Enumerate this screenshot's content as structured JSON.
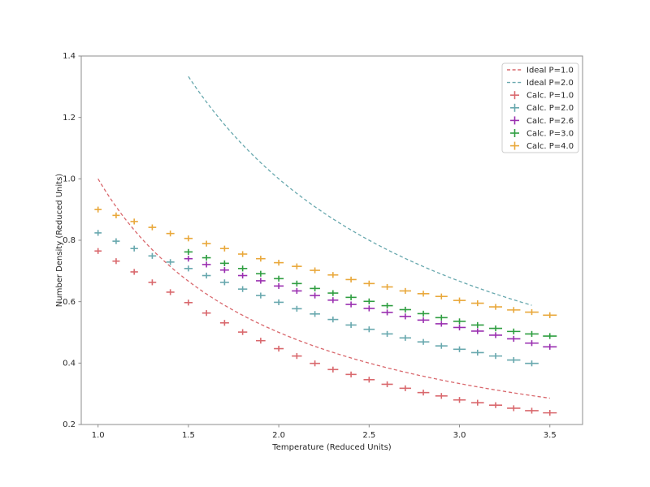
{
  "chart_data": {
    "type": "line+scatter-errorbar",
    "title": "",
    "xlabel": "Temperature (Reduced Units)",
    "ylabel": "Number Density (Reduced Units)",
    "xlim": [
      0.907,
      3.681
    ],
    "ylim": [
      0.2,
      1.4
    ],
    "xticks": [
      1.0,
      1.5,
      2.0,
      2.5,
      3.0,
      3.5
    ],
    "yticks": [
      0.2,
      0.4,
      0.6,
      0.8,
      1.0,
      1.2,
      1.4
    ],
    "grid": false,
    "legend_position": "upper right",
    "xerr_rule": {
      "base": 0.012,
      "slope": 0.0075
    },
    "series": [
      {
        "name": "Ideal P=1.0",
        "kind": "ideal_line",
        "pressure": 1.0,
        "formula": "density = P / T",
        "T_range": [
          1.0,
          3.5
        ],
        "color": "#d9686d",
        "linestyle": "dashed"
      },
      {
        "name": "Ideal P=2.0",
        "kind": "ideal_line",
        "pressure": 2.0,
        "formula": "density = P / T",
        "T_range": [
          1.5,
          3.4
        ],
        "color": "#68a8ae",
        "linestyle": "dashed"
      },
      {
        "name": "Calc. P=1.0",
        "kind": "errorbar",
        "pressure": 1.0,
        "color": "#d9686d",
        "marker": "+",
        "T": [
          1.0,
          1.1,
          1.2,
          1.3,
          1.4,
          1.5,
          1.6,
          1.7,
          1.8,
          1.9,
          2.0,
          2.1,
          2.2,
          2.3,
          2.4,
          2.5,
          2.6,
          2.7,
          2.8,
          2.9,
          3.0,
          3.1,
          3.2,
          3.3,
          3.4,
          3.5
        ],
        "density": [
          0.765,
          0.732,
          0.697,
          0.663,
          0.631,
          0.597,
          0.563,
          0.531,
          0.501,
          0.473,
          0.447,
          0.423,
          0.399,
          0.379,
          0.363,
          0.346,
          0.331,
          0.318,
          0.304,
          0.293,
          0.28,
          0.271,
          0.263,
          0.253,
          0.245,
          0.238
        ]
      },
      {
        "name": "Calc. P=2.0",
        "kind": "errorbar",
        "pressure": 2.0,
        "color": "#68a8ae",
        "marker": "+",
        "T": [
          1.0,
          1.1,
          1.2,
          1.3,
          1.4,
          1.5,
          1.6,
          1.7,
          1.8,
          1.9,
          2.0,
          2.1,
          2.2,
          2.3,
          2.4,
          2.5,
          2.6,
          2.7,
          2.8,
          2.9,
          3.0,
          3.1,
          3.2,
          3.3,
          3.4
        ],
        "density": [
          0.824,
          0.797,
          0.773,
          0.749,
          0.729,
          0.708,
          0.685,
          0.663,
          0.641,
          0.62,
          0.598,
          0.577,
          0.56,
          0.542,
          0.524,
          0.51,
          0.495,
          0.482,
          0.469,
          0.456,
          0.445,
          0.434,
          0.423,
          0.41,
          0.399
        ]
      },
      {
        "name": "Calc. P=2.6",
        "kind": "errorbar",
        "pressure": 2.6,
        "color": "#9a2fb0",
        "marker": "+",
        "T": [
          1.5,
          1.6,
          1.7,
          1.8,
          1.9,
          2.0,
          2.1,
          2.2,
          2.3,
          2.4,
          2.5,
          2.6,
          2.7,
          2.8,
          2.9,
          3.0,
          3.1,
          3.2,
          3.3,
          3.4,
          3.5
        ],
        "density": [
          0.74,
          0.721,
          0.703,
          0.685,
          0.668,
          0.651,
          0.635,
          0.62,
          0.605,
          0.591,
          0.578,
          0.565,
          0.552,
          0.54,
          0.528,
          0.516,
          0.504,
          0.491,
          0.479,
          0.465,
          0.453
        ]
      },
      {
        "name": "Calc. P=3.0",
        "kind": "errorbar",
        "pressure": 3.0,
        "color": "#2f9e41",
        "marker": "+",
        "T": [
          1.5,
          1.6,
          1.7,
          1.8,
          1.9,
          2.0,
          2.1,
          2.2,
          2.3,
          2.4,
          2.5,
          2.6,
          2.7,
          2.8,
          2.9,
          3.0,
          3.1,
          3.2,
          3.3,
          3.4,
          3.5
        ],
        "density": [
          0.762,
          0.743,
          0.725,
          0.708,
          0.691,
          0.675,
          0.659,
          0.643,
          0.628,
          0.614,
          0.601,
          0.587,
          0.574,
          0.561,
          0.548,
          0.536,
          0.524,
          0.513,
          0.503,
          0.495,
          0.488
        ]
      },
      {
        "name": "Calc. P=4.0",
        "kind": "errorbar",
        "pressure": 4.0,
        "color": "#e9a83b",
        "marker": "+",
        "T": [
          1.0,
          1.1,
          1.2,
          1.3,
          1.4,
          1.5,
          1.6,
          1.7,
          1.8,
          1.9,
          2.0,
          2.1,
          2.2,
          2.3,
          2.4,
          2.5,
          2.6,
          2.7,
          2.8,
          2.9,
          3.0,
          3.1,
          3.2,
          3.3,
          3.4,
          3.5
        ],
        "density": [
          0.9,
          0.881,
          0.861,
          0.842,
          0.822,
          0.806,
          0.789,
          0.773,
          0.755,
          0.74,
          0.727,
          0.715,
          0.702,
          0.687,
          0.672,
          0.659,
          0.648,
          0.635,
          0.626,
          0.617,
          0.604,
          0.595,
          0.583,
          0.573,
          0.566,
          0.556
        ]
      }
    ]
  },
  "legend": {
    "entries": [
      {
        "label": "Ideal P=1.0",
        "swatch": "dashes",
        "color": "#d9686d"
      },
      {
        "label": "Ideal P=2.0",
        "swatch": "dashes",
        "color": "#68a8ae"
      },
      {
        "label": "Calc. P=1.0",
        "swatch": "plus",
        "color": "#d9686d"
      },
      {
        "label": "Calc. P=2.0",
        "swatch": "plus",
        "color": "#68a8ae"
      },
      {
        "label": "Calc. P=2.6",
        "swatch": "plus",
        "color": "#9a2fb0"
      },
      {
        "label": "Calc. P=3.0",
        "swatch": "plus",
        "color": "#2f9e41"
      },
      {
        "label": "Calc. P=4.0",
        "swatch": "plus",
        "color": "#e9a83b"
      }
    ]
  },
  "style": {
    "spine_color": "#8c8c8c",
    "tick_color": "#8c8c8c",
    "text_color": "#262626",
    "legend_border_color": "#cccccc",
    "background": "#ffffff"
  }
}
